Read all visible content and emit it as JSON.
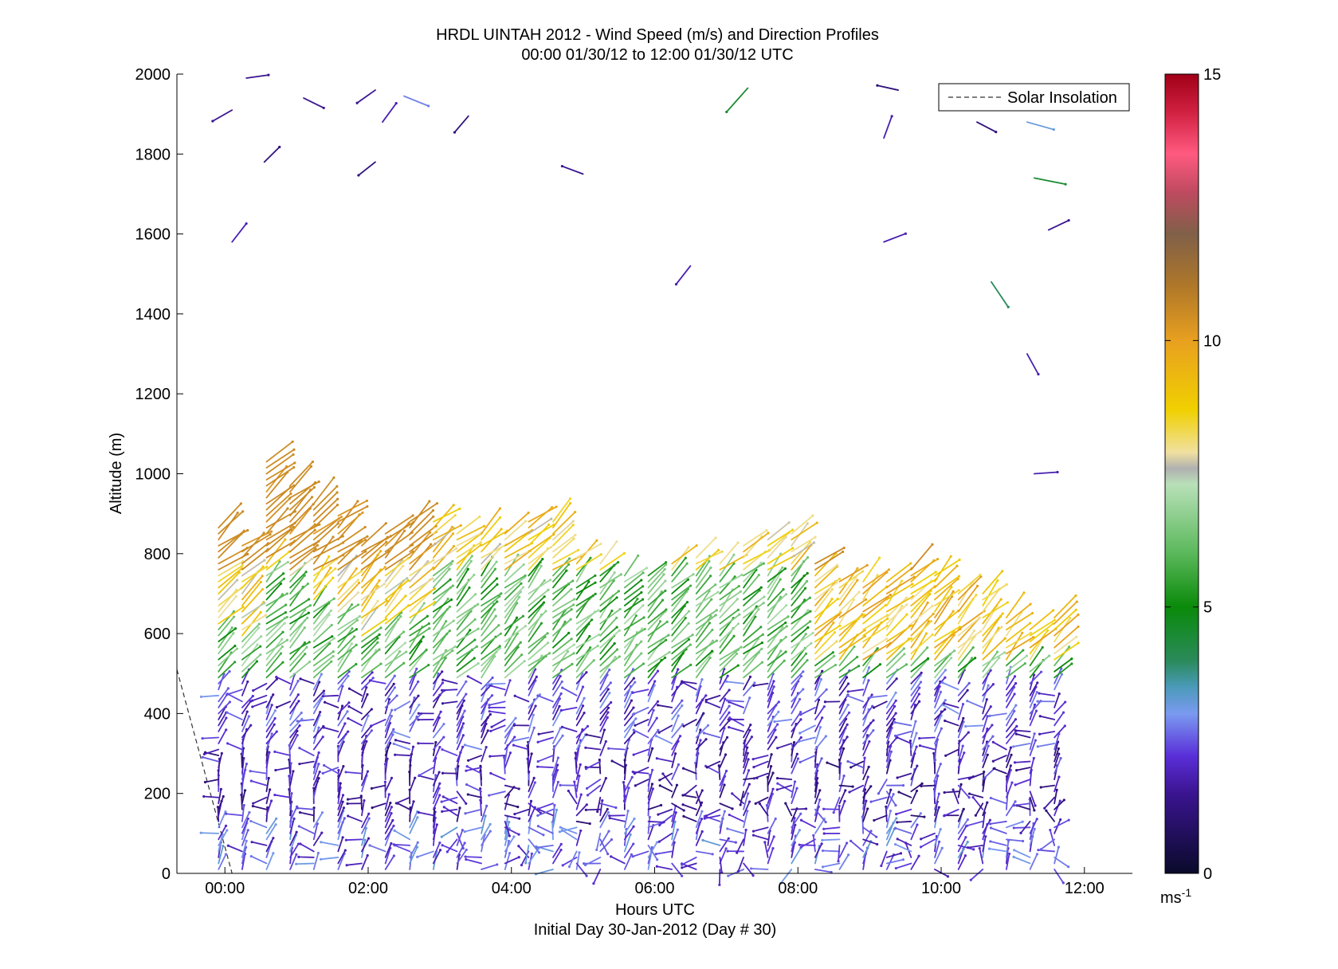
{
  "chart_data": {
    "type": "wind-barb-profile",
    "title": "HRDL UINTAH 2012 - Wind Speed (m/s) and Direction Profiles",
    "subtitle": "00:00 01/30/12 to 12:00 01/30/12  UTC",
    "xlabel": "Hours UTC",
    "xlabel2": "Initial Day 30-Jan-2012 (Day # 30)",
    "ylabel": "Altitude (m)",
    "xlim_hours": [
      -0.67,
      12.67
    ],
    "ylim": [
      0,
      2000
    ],
    "x_ticks": [
      {
        "value": 0,
        "label": "00:00"
      },
      {
        "value": 2,
        "label": "02:00"
      },
      {
        "value": 4,
        "label": "04:00"
      },
      {
        "value": 6,
        "label": "06:00"
      },
      {
        "value": 8,
        "label": "08:00"
      },
      {
        "value": 10,
        "label": "10:00"
      },
      {
        "value": 12,
        "label": "12:00"
      }
    ],
    "y_ticks": [
      {
        "value": 0,
        "label": "0"
      },
      {
        "value": 200,
        "label": "200"
      },
      {
        "value": 400,
        "label": "400"
      },
      {
        "value": 600,
        "label": "600"
      },
      {
        "value": 800,
        "label": "800"
      },
      {
        "value": 1000,
        "label": "1000"
      },
      {
        "value": 1200,
        "label": "1200"
      },
      {
        "value": 1400,
        "label": "1400"
      },
      {
        "value": 1600,
        "label": "1600"
      },
      {
        "value": 1800,
        "label": "1800"
      },
      {
        "value": 2000,
        "label": "2000"
      }
    ],
    "legend": {
      "entry": "Solar Insolation",
      "placement": "top-right",
      "style": "dashed"
    },
    "solar_insolation_line": {
      "x": [
        -0.67,
        0.1
      ],
      "y": [
        510,
        0
      ]
    },
    "colorbar": {
      "range": [
        0,
        15
      ],
      "ticks": [
        {
          "value": 0,
          "label": "0"
        },
        {
          "value": 5,
          "label": "5"
        },
        {
          "value": 10,
          "label": "10"
        },
        {
          "value": 15,
          "label": "15"
        }
      ],
      "unit_label": "ms",
      "unit_exponent": "-1",
      "stops": [
        {
          "value": 0,
          "color": "#0a0a2a"
        },
        {
          "value": 1.5,
          "color": "#3a1490"
        },
        {
          "value": 2.2,
          "color": "#5a2ed8"
        },
        {
          "value": 3.0,
          "color": "#7a9af0"
        },
        {
          "value": 3.5,
          "color": "#4a9ab8"
        },
        {
          "value": 4.0,
          "color": "#2a8a5a"
        },
        {
          "value": 5.0,
          "color": "#0a8a0a"
        },
        {
          "value": 6.0,
          "color": "#5ab85a"
        },
        {
          "value": 7.3,
          "color": "#b8e0b8"
        },
        {
          "value": 7.6,
          "color": "#b0b0b0"
        },
        {
          "value": 7.9,
          "color": "#f0e0a0"
        },
        {
          "value": 8.7,
          "color": "#f0d000"
        },
        {
          "value": 10.0,
          "color": "#e8a020"
        },
        {
          "value": 11.0,
          "color": "#b07828"
        },
        {
          "value": 12.0,
          "color": "#806048"
        },
        {
          "value": 12.8,
          "color": "#c04a60"
        },
        {
          "value": 13.5,
          "color": "#ff5a80"
        },
        {
          "value": 14.3,
          "color": "#d02040"
        },
        {
          "value": 15.0,
          "color": "#a00018"
        }
      ]
    },
    "profile_times_hours": [
      0.0,
      0.33,
      0.67,
      1.0,
      1.33,
      1.67,
      2.0,
      2.33,
      2.67,
      3.0,
      3.33,
      3.67,
      4.0,
      4.33,
      4.67,
      5.0,
      5.33,
      5.67,
      6.0,
      6.33,
      6.67,
      7.0,
      7.33,
      7.67,
      8.0,
      8.33,
      8.67,
      9.0,
      9.33,
      9.67,
      10.0,
      10.33,
      10.67,
      11.0,
      11.33,
      11.67
    ],
    "lowlevel_profiles": {
      "description": "Representative wind vectors (speed m/s, direction deg pointing-to) at each profile time",
      "altitude_step_m": 30,
      "top_altitude_m": [
        870,
        830,
        1030,
        980,
        930,
        900,
        830,
        860,
        880,
        890,
        850,
        850,
        860,
        880,
        890,
        800,
        780,
        750,
        750,
        780,
        790,
        780,
        830,
        840,
        850,
        780,
        740,
        740,
        740,
        760,
        750,
        700,
        700,
        640,
        620,
        640
      ],
      "layers": [
        {
          "from": 0,
          "to": 120,
          "speed": 2.5,
          "dir_deg": 70
        },
        {
          "from": 120,
          "to": 300,
          "speed": 1.8,
          "dir_deg": 80
        },
        {
          "from": 300,
          "to": 480,
          "speed": 2.2,
          "dir_deg": 60
        },
        {
          "from": 480,
          "to": 750,
          "speed": 5.8,
          "dir_deg": 45
        },
        {
          "from": 750,
          "to": 1050,
          "speed": 8.5,
          "dir_deg": 40
        }
      ]
    },
    "upper_sparse_points": [
      {
        "t": 0.1,
        "alt": 1910,
        "speed": 1.5
      },
      {
        "t": 0.3,
        "alt": 1990,
        "speed": 1.5
      },
      {
        "t": 0.55,
        "alt": 1780,
        "speed": 1.2
      },
      {
        "t": 1.1,
        "alt": 1940,
        "speed": 1.5
      },
      {
        "t": 2.1,
        "alt": 1960,
        "speed": 1.5
      },
      {
        "t": 2.5,
        "alt": 1945,
        "speed": 2.8
      },
      {
        "t": 2.2,
        "alt": 1880,
        "speed": 1.8
      },
      {
        "t": 3.4,
        "alt": 1895,
        "speed": 1.2
      },
      {
        "t": 2.1,
        "alt": 1780,
        "speed": 1.2
      },
      {
        "t": 0.1,
        "alt": 1580,
        "speed": 1.8
      },
      {
        "t": 5.0,
        "alt": 1750,
        "speed": 1.5
      },
      {
        "t": 6.5,
        "alt": 1520,
        "speed": 1.8
      },
      {
        "t": 7.3,
        "alt": 1965,
        "speed": 4.5
      },
      {
        "t": 9.4,
        "alt": 1960,
        "speed": 1.2
      },
      {
        "t": 9.2,
        "alt": 1840,
        "speed": 1.8
      },
      {
        "t": 9.2,
        "alt": 1580,
        "speed": 1.8
      },
      {
        "t": 10.5,
        "alt": 1880,
        "speed": 1.2
      },
      {
        "t": 11.2,
        "alt": 1880,
        "speed": 3.2
      },
      {
        "t": 11.3,
        "alt": 1740,
        "speed": 4.5
      },
      {
        "t": 10.7,
        "alt": 1480,
        "speed": 4.0
      },
      {
        "t": 11.5,
        "alt": 1610,
        "speed": 1.5
      },
      {
        "t": 11.2,
        "alt": 1300,
        "speed": 1.8
      },
      {
        "t": 11.3,
        "alt": 1000,
        "speed": 1.8
      }
    ]
  }
}
